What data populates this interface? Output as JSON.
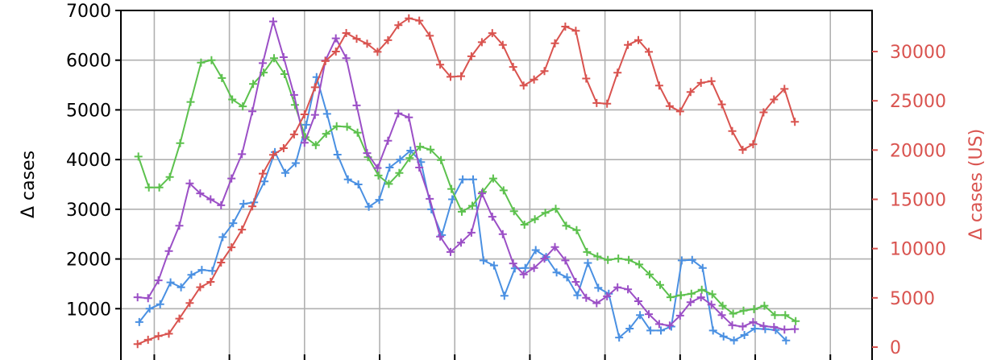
{
  "chart_data": {
    "type": "line",
    "title": "",
    "xlabel": "",
    "ylabel": "Δ cases",
    "ylabel_right": "Δ cases (US)",
    "ylim": [
      0,
      7000
    ],
    "ylim_right": [
      0,
      35000
    ],
    "yticks": [
      1000,
      2000,
      3000,
      4000,
      5000,
      6000,
      7000
    ],
    "yticks_right": [
      0,
      5000,
      10000,
      15000,
      20000,
      25000,
      30000
    ],
    "xlim": [
      -4,
      176
    ],
    "xgrid": [
      4,
      22,
      40,
      58,
      76,
      94,
      112,
      130,
      148,
      166,
      184,
      202,
      220,
      238,
      256,
      274,
      292,
      310
    ],
    "grid": true,
    "legend": "none",
    "series": [
      {
        "color": "#4a90e2",
        "axis": "left",
        "values": [
          730,
          1000,
          1090,
          1530,
          1430,
          1680,
          1780,
          1760,
          2440,
          2720,
          3110,
          3140,
          3560,
          4150,
          3730,
          3930,
          4700,
          5660,
          4920,
          4100,
          3600,
          3500,
          3050,
          3190,
          3840,
          4000,
          4180,
          3950,
          3000,
          2480,
          3200,
          3600,
          3600,
          1970,
          1870,
          1260,
          1810,
          1820,
          2180,
          2040,
          1730,
          1630,
          1270,
          1920,
          1420,
          1300,
          420,
          600,
          870,
          560,
          560,
          640,
          1970,
          1980,
          1820,
          560,
          440,
          360,
          470,
          600,
          590,
          570,
          360
        ]
      },
      {
        "color": "#5cc14d",
        "axis": "left",
        "values": [
          4060,
          3440,
          3440,
          3650,
          4330,
          5160,
          5950,
          6000,
          5640,
          5210,
          5070,
          5520,
          5750,
          6040,
          5720,
          5100,
          4450,
          4290,
          4520,
          4670,
          4660,
          4540,
          4050,
          3680,
          3510,
          3730,
          4030,
          4260,
          4200,
          3990,
          3410,
          2950,
          3070,
          3350,
          3620,
          3380,
          2960,
          2690,
          2800,
          2930,
          3010,
          2670,
          2580,
          2140,
          2050,
          1980,
          2010,
          1980,
          1890,
          1690,
          1480,
          1230,
          1270,
          1300,
          1380,
          1290,
          1060,
          900,
          960,
          990,
          1060,
          870,
          870,
          750
        ]
      },
      {
        "color": "#9b4fc6",
        "axis": "left",
        "values": [
          1230,
          1210,
          1570,
          2160,
          2670,
          3520,
          3320,
          3200,
          3080,
          3620,
          4110,
          4970,
          5940,
          6780,
          6060,
          5300,
          4340,
          4900,
          5990,
          6440,
          6040,
          5090,
          4130,
          3830,
          4380,
          4930,
          4850,
          3840,
          3210,
          2450,
          2140,
          2330,
          2530,
          3320,
          2850,
          2500,
          1910,
          1690,
          1820,
          2010,
          2240,
          1970,
          1540,
          1220,
          1110,
          1250,
          1430,
          1390,
          1150,
          890,
          690,
          660,
          860,
          1130,
          1230,
          1080,
          870,
          670,
          640,
          730,
          650,
          630,
          580,
          590
        ]
      },
      {
        "color": "#d9534f",
        "axis": "right",
        "values": [
          300,
          740,
          1120,
          1360,
          2890,
          4480,
          6080,
          6620,
          8580,
          10130,
          11930,
          14290,
          17610,
          19520,
          20190,
          21590,
          23620,
          26370,
          29030,
          30000,
          31880,
          31300,
          30790,
          29970,
          31150,
          32680,
          33380,
          33140,
          31600,
          28670,
          27430,
          27500,
          29520,
          30950,
          31870,
          30680,
          28440,
          26550,
          27160,
          28010,
          30840,
          32530,
          32110,
          27260,
          24780,
          24710,
          27860,
          30670,
          31170,
          29970,
          26540,
          24470,
          23920,
          25890,
          26820,
          26990,
          24640,
          21920,
          20020,
          20590,
          23830,
          25140,
          26210,
          22860
        ]
      }
    ]
  }
}
